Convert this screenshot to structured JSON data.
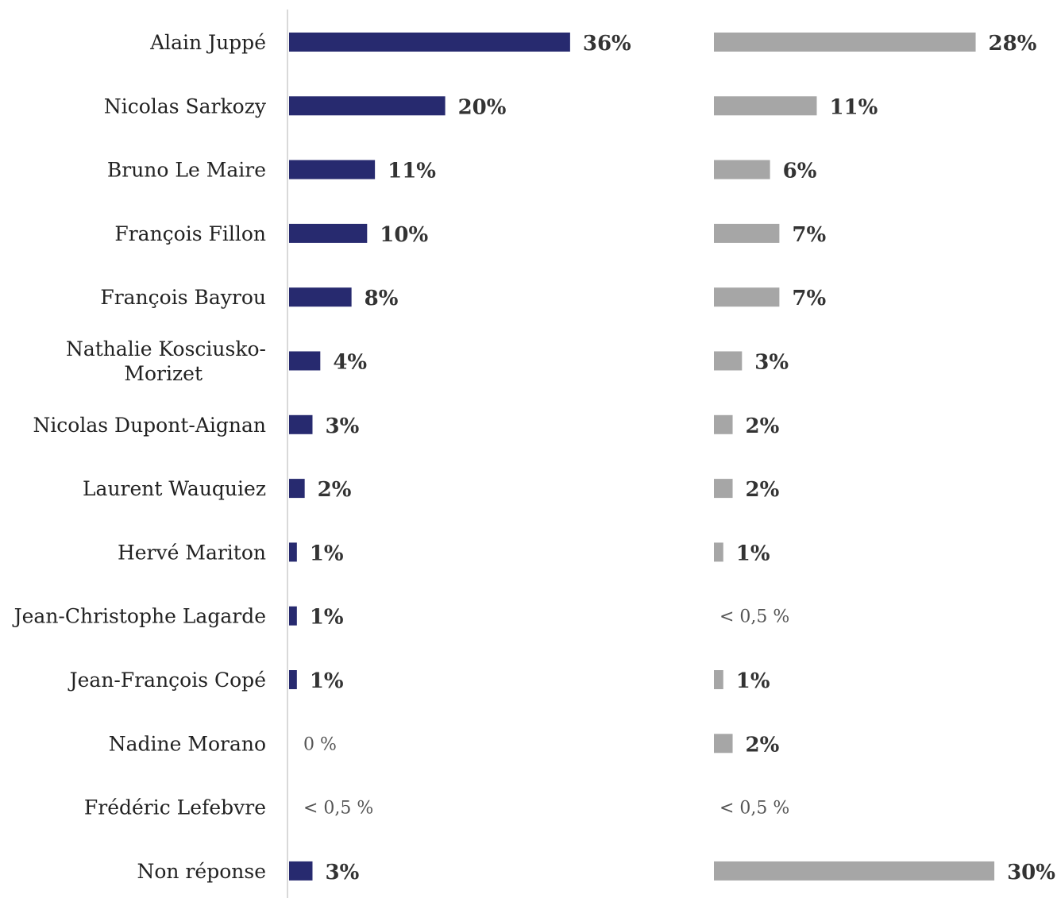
{
  "chart_data": {
    "type": "bar",
    "orientation": "horizontal",
    "title": "",
    "categories": [
      "Alain Juppé",
      "Nicolas Sarkozy",
      "Bruno Le Maire",
      "François Fillon",
      "François Bayrou",
      "Nathalie Kosciusko-Morizet",
      "Nicolas Dupont-Aignan",
      "Laurent Wauquiez",
      "Hervé Mariton",
      "Jean-Christophe Lagarde",
      "Jean-François Copé",
      "Nadine Morano",
      "Frédéric Lefebvre",
      "Non réponse"
    ],
    "category_label_lines": [
      [
        "Alain Juppé"
      ],
      [
        "Nicolas Sarkozy"
      ],
      [
        "Bruno Le Maire"
      ],
      [
        "François Fillon"
      ],
      [
        "François Bayrou"
      ],
      [
        "Nathalie Kosciusko-",
        "Morizet"
      ],
      [
        "Nicolas Dupont-Aignan"
      ],
      [
        "Laurent Wauquiez"
      ],
      [
        "Hervé Mariton"
      ],
      [
        "Jean-Christophe Lagarde"
      ],
      [
        "Jean-François Copé"
      ],
      [
        "Nadine Morano"
      ],
      [
        "Frédéric Lefebvre"
      ],
      [
        "Non réponse"
      ]
    ],
    "series": [
      {
        "color": "#272a6f",
        "values": [
          36,
          20,
          11,
          10,
          8,
          4,
          3,
          2,
          1,
          1,
          1,
          0,
          0.4,
          3
        ],
        "labels": [
          "36%",
          "20%",
          "11%",
          "10%",
          "8%",
          "4%",
          "3%",
          "2%",
          "1%",
          "1%",
          "1%",
          "0 %",
          "< 0,5 %",
          "3%"
        ],
        "label_emphasis": [
          true,
          true,
          true,
          true,
          true,
          true,
          true,
          true,
          true,
          true,
          true,
          false,
          false,
          true
        ]
      },
      {
        "color": "#a6a6a6",
        "values": [
          28,
          11,
          6,
          7,
          7,
          3,
          2,
          2,
          1,
          0.4,
          1,
          2,
          0.4,
          30
        ],
        "labels": [
          "28%",
          "11%",
          "6%",
          "7%",
          "7%",
          "3%",
          "2%",
          "2%",
          "1%",
          "< 0,5 %",
          "1%",
          "2%",
          "< 0,5 %",
          "30%"
        ],
        "label_emphasis": [
          true,
          true,
          true,
          true,
          true,
          true,
          true,
          true,
          true,
          false,
          true,
          true,
          false,
          true
        ]
      }
    ],
    "value_unit": "%",
    "xlim": [
      0,
      36
    ],
    "axis_color": "#d9d9d9",
    "grid": false,
    "legend": "none"
  }
}
